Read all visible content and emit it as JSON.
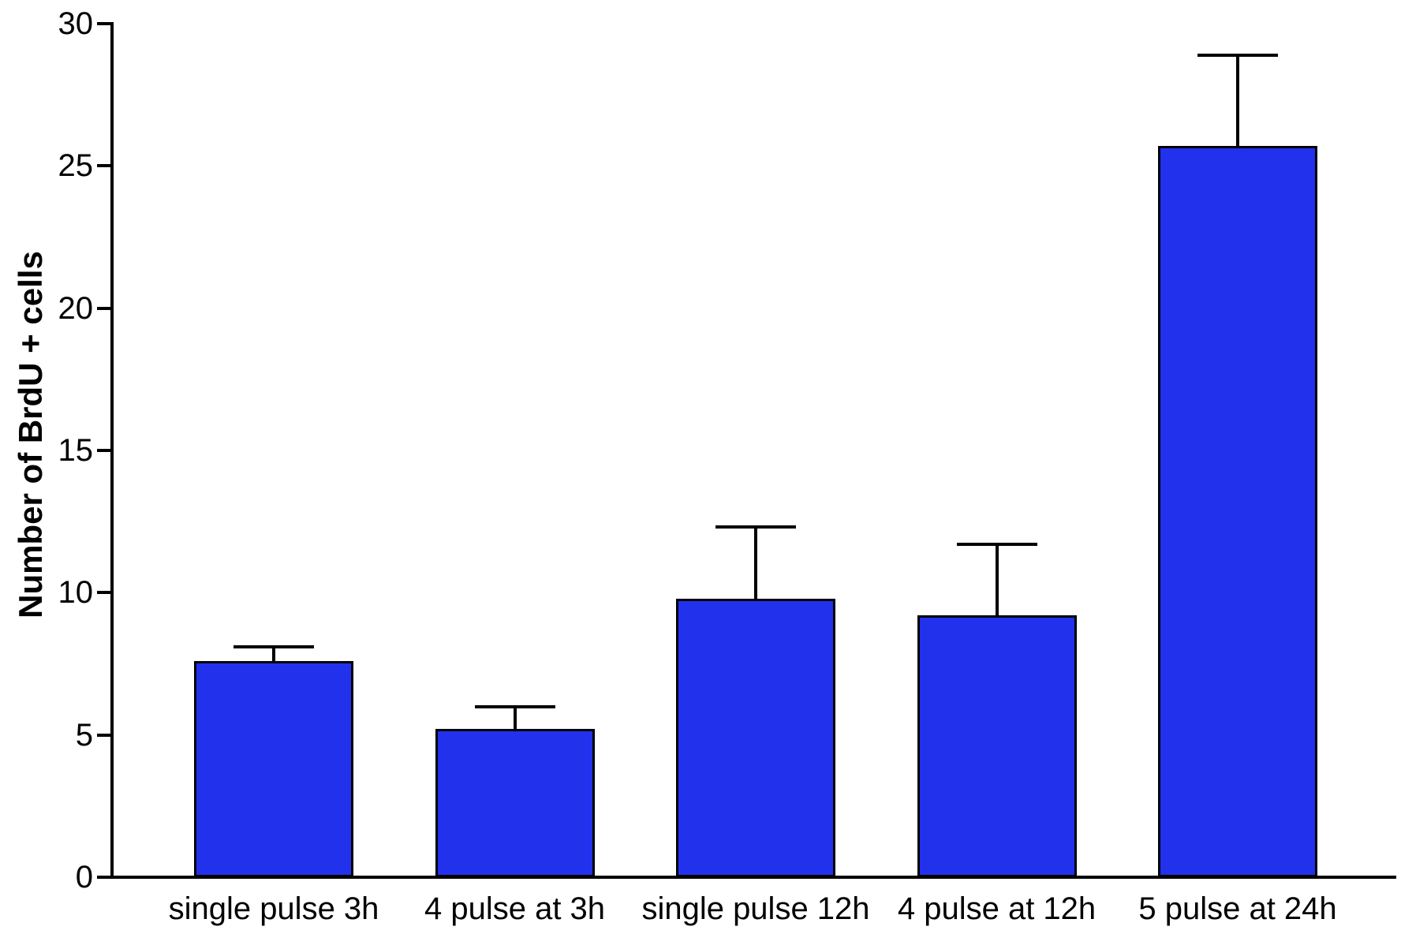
{
  "chart_data": {
    "type": "bar",
    "title": "",
    "ylabel": "Number of BrdU + cells",
    "xlabel": "",
    "categories": [
      "single pulse 3h",
      "4 pulse at 3h",
      "single pulse 12h",
      "4 pulse at 12h",
      "5 pulse at 24h"
    ],
    "values": [
      7.6,
      5.2,
      9.8,
      9.2,
      25.7
    ],
    "errors_plus": [
      0.5,
      0.8,
      2.5,
      2.5,
      3.2
    ],
    "ylim": [
      0,
      30
    ],
    "yticks": [
      0,
      5,
      10,
      15,
      20,
      25,
      30
    ],
    "grid": false,
    "legend": null,
    "bar_color": "#2231EC",
    "bar_border_color": "#000000",
    "error_bar_color": "#000000",
    "axis_color": "#000000",
    "background_color": "#FFFFFF"
  }
}
